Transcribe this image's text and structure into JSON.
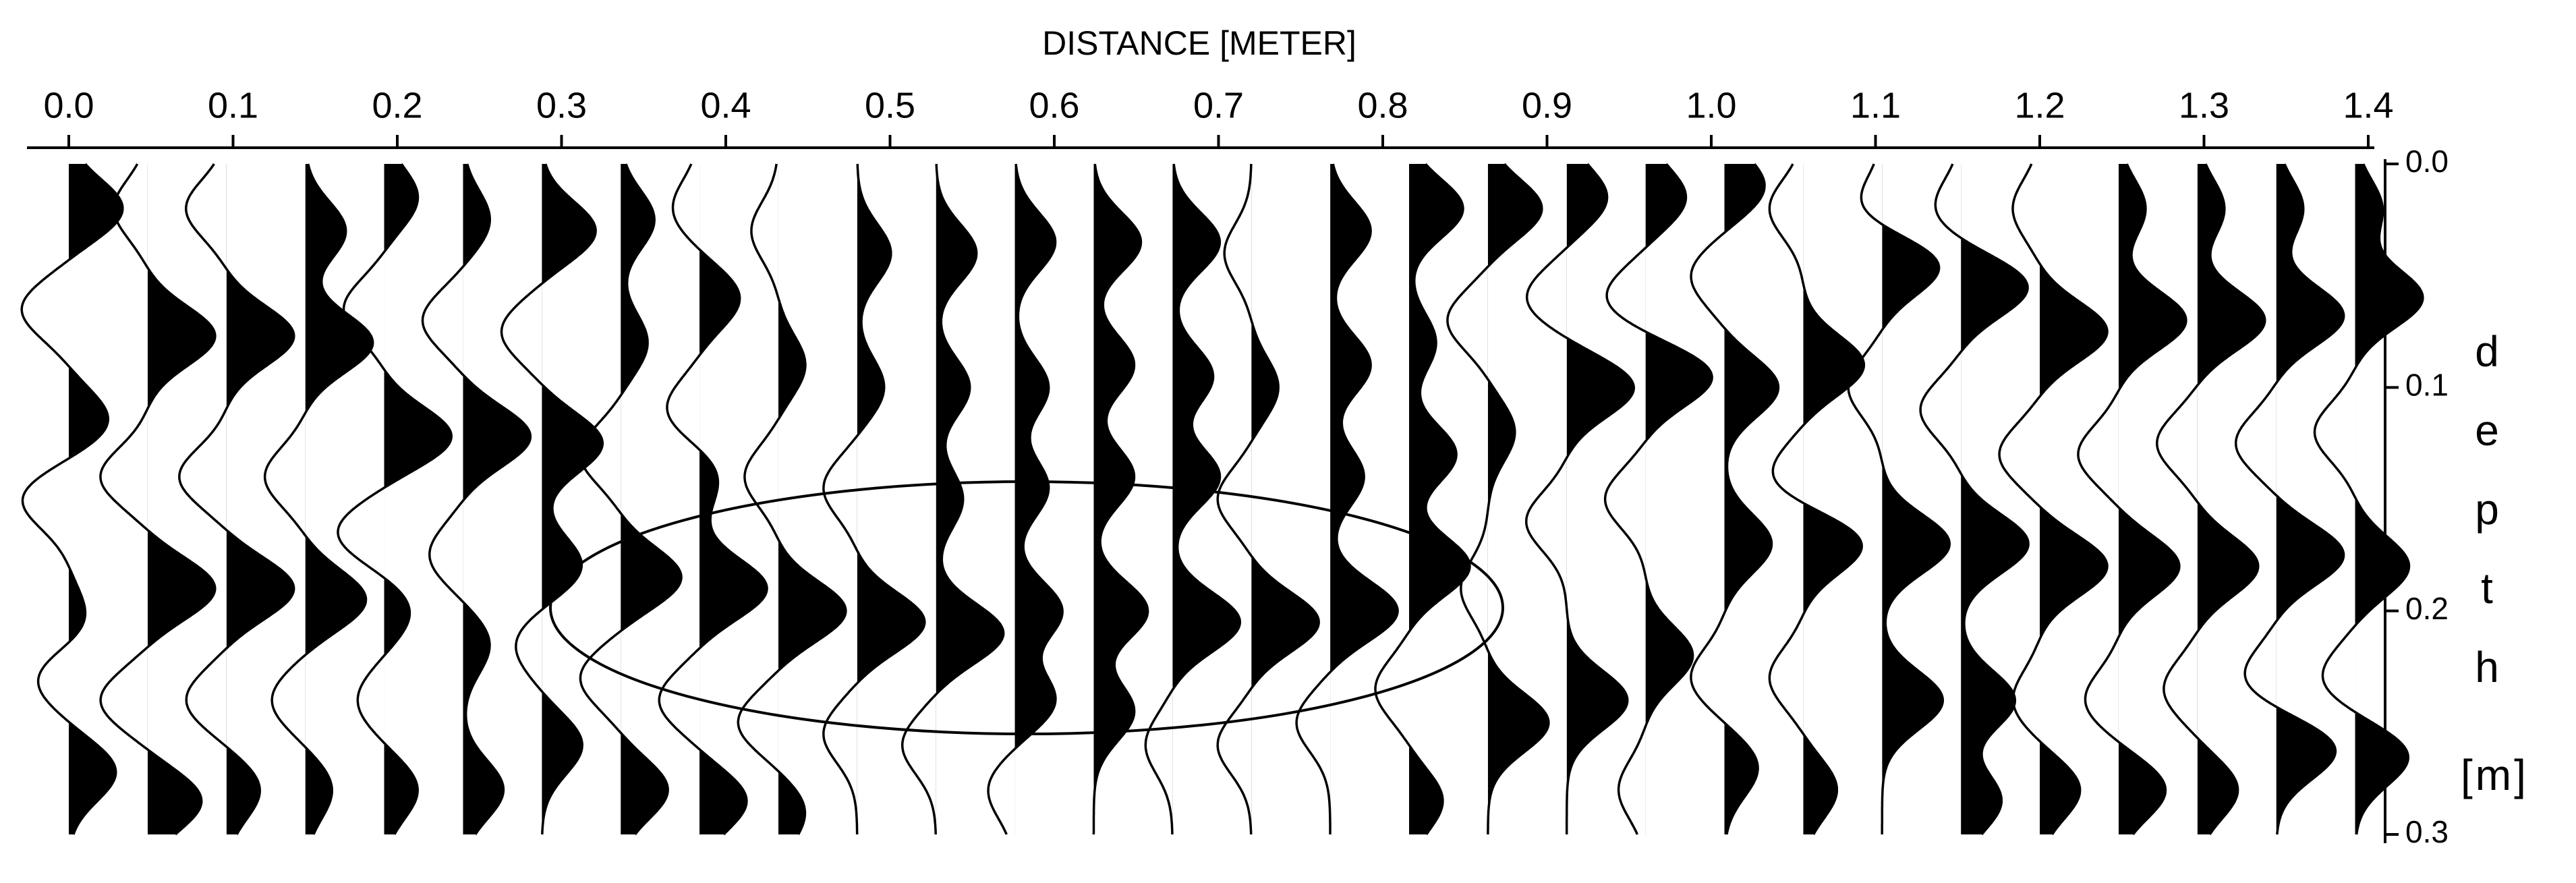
{
  "chart_data": {
    "type": "wiggle",
    "title": "DISTANCE [METER]",
    "y_label": "depth",
    "y_unit": "[m]",
    "xlim": [
      0,
      1.4
    ],
    "ylim": [
      0,
      0.3
    ],
    "xticks": [
      {
        "value": 0,
        "label": "0.0"
      },
      0.1,
      0.2,
      0.3,
      0.4,
      0.5,
      0.6,
      0.7,
      0.8,
      0.9,
      {
        "value": 1,
        "label": "1.0"
      },
      1.1,
      1.2,
      1.3,
      1.4
    ],
    "yticks": [
      {
        "value": 0,
        "label": "0.0"
      },
      0.1,
      0.2,
      0.3
    ],
    "color": "#000000",
    "traces": [
      {
        "x": 0,
        "lobes": [
          [
            0.02,
            0.8
          ],
          [
            0.065,
            -0.7
          ],
          [
            0.115,
            0.6
          ],
          [
            0.15,
            -0.7
          ],
          [
            0.205,
            0.3
          ],
          [
            0.23,
            -0.5
          ],
          [
            0.272,
            0.7
          ]
        ]
      },
      {
        "x": 0.048,
        "lobes": [
          [
            0.02,
            -0.5
          ],
          [
            0.077,
            1
          ],
          [
            0.14,
            -0.7
          ],
          [
            0.19,
            1
          ],
          [
            0.24,
            -0.7
          ],
          [
            0.285,
            0.8
          ]
        ]
      },
      {
        "x": 0.096,
        "lobes": [
          [
            0.02,
            -0.6
          ],
          [
            0.077,
            1
          ],
          [
            0.14,
            -0.7
          ],
          [
            0.19,
            1
          ],
          [
            0.24,
            -0.6
          ],
          [
            0.28,
            0.5
          ]
        ]
      },
      {
        "x": 0.144,
        "lobes": [
          [
            0.03,
            0.6
          ],
          [
            0.08,
            1
          ],
          [
            0.14,
            -0.6
          ],
          [
            0.195,
            0.9
          ],
          [
            0.24,
            -0.5
          ],
          [
            0.28,
            0.4
          ]
        ]
      },
      {
        "x": 0.192,
        "lobes": [
          [
            0.015,
            0.5
          ],
          [
            0.065,
            -0.6
          ],
          [
            0.122,
            1
          ],
          [
            0.165,
            -0.7
          ],
          [
            0.2,
            0.4
          ],
          [
            0.24,
            -0.4
          ],
          [
            0.28,
            0.5
          ]
        ]
      },
      {
        "x": 0.24,
        "lobes": [
          [
            0.025,
            0.4
          ],
          [
            0.07,
            -0.6
          ],
          [
            0.122,
            1
          ],
          [
            0.175,
            -0.5
          ],
          [
            0.215,
            0.4
          ],
          [
            0.28,
            0.6
          ]
        ]
      },
      {
        "x": 0.288,
        "lobes": [
          [
            0.03,
            0.8
          ],
          [
            0.075,
            -0.6
          ],
          [
            0.125,
            0.9
          ],
          [
            0.18,
            0.6
          ],
          [
            0.215,
            -0.4
          ],
          [
            0.26,
            0.6
          ]
        ]
      },
      {
        "x": 0.336,
        "lobes": [
          [
            0.025,
            0.5
          ],
          [
            0.08,
            0.4
          ],
          [
            0.13,
            -0.6
          ],
          [
            0.185,
            0.9
          ],
          [
            0.23,
            -0.6
          ],
          [
            0.28,
            0.7
          ]
        ]
      },
      {
        "x": 0.384,
        "lobes": [
          [
            0.02,
            -0.4
          ],
          [
            0.06,
            0.6
          ],
          [
            0.11,
            -0.5
          ],
          [
            0.14,
            0.3
          ],
          [
            0.19,
            1
          ],
          [
            0.24,
            -0.6
          ],
          [
            0.285,
            0.7
          ]
        ]
      },
      {
        "x": 0.432,
        "lobes": [
          [
            0.03,
            -0.4
          ],
          [
            0.09,
            0.4
          ],
          [
            0.14,
            -0.5
          ],
          [
            0.2,
            1
          ],
          [
            0.25,
            -0.6
          ],
          [
            0.29,
            0.4
          ]
        ]
      },
      {
        "x": 0.48,
        "lobes": [
          [
            0.04,
            0.5
          ],
          [
            0.1,
            0.4
          ],
          [
            0.145,
            -0.5
          ],
          [
            0.205,
            1
          ],
          [
            0.255,
            -0.5
          ]
        ]
      },
      {
        "x": 0.528,
        "lobes": [
          [
            0.04,
            0.6
          ],
          [
            0.1,
            0.5
          ],
          [
            0.15,
            0.4
          ],
          [
            0.21,
            1
          ],
          [
            0.26,
            -0.5
          ]
        ]
      },
      {
        "x": 0.576,
        "lobes": [
          [
            0.035,
            0.6
          ],
          [
            0.1,
            0.5
          ],
          [
            0.145,
            0.5
          ],
          [
            0.2,
            0.7
          ],
          [
            0.24,
            0.6
          ],
          [
            0.28,
            -0.4
          ]
        ]
      },
      {
        "x": 0.624,
        "lobes": [
          [
            0.035,
            0.7
          ],
          [
            0.09,
            0.6
          ],
          [
            0.14,
            0.6
          ],
          [
            0.2,
            0.8
          ],
          [
            0.245,
            0.6
          ]
        ]
      },
      {
        "x": 0.672,
        "lobes": [
          [
            0.035,
            0.7
          ],
          [
            0.095,
            0.6
          ],
          [
            0.14,
            0.7
          ],
          [
            0.205,
            1
          ],
          [
            0.26,
            -0.4
          ]
        ]
      },
      {
        "x": 0.72,
        "lobes": [
          [
            0.04,
            -0.4
          ],
          [
            0.1,
            0.4
          ],
          [
            0.15,
            -0.5
          ],
          [
            0.205,
            1
          ],
          [
            0.26,
            -0.5
          ]
        ]
      },
      {
        "x": 0.768,
        "lobes": [
          [
            0.03,
            0.6
          ],
          [
            0.09,
            0.6
          ],
          [
            0.14,
            0.5
          ],
          [
            0.2,
            1
          ],
          [
            0.25,
            -0.5
          ]
        ]
      },
      {
        "x": 0.816,
        "lobes": [
          [
            0.02,
            0.8
          ],
          [
            0.08,
            0.4
          ],
          [
            0.13,
            0.7
          ],
          [
            0.18,
            0.9
          ],
          [
            0.235,
            -0.5
          ],
          [
            0.285,
            0.5
          ]
        ]
      },
      {
        "x": 0.864,
        "lobes": [
          [
            0.02,
            0.8
          ],
          [
            0.07,
            -0.6
          ],
          [
            0.12,
            0.4
          ],
          [
            0.19,
            -0.4
          ],
          [
            0.25,
            0.9
          ]
        ]
      },
      {
        "x": 0.912,
        "lobes": [
          [
            0.015,
            0.6
          ],
          [
            0.06,
            -0.6
          ],
          [
            0.1,
            1
          ],
          [
            0.16,
            -0.6
          ],
          [
            0.24,
            0.9
          ]
        ]
      },
      {
        "x": 0.96,
        "lobes": [
          [
            0.015,
            0.6
          ],
          [
            0.06,
            -0.6
          ],
          [
            0.095,
            1
          ],
          [
            0.15,
            -0.6
          ],
          [
            0.22,
            0.7
          ],
          [
            0.28,
            -0.4
          ]
        ]
      },
      {
        "x": 1.008,
        "lobes": [
          [
            0.01,
            0.6
          ],
          [
            0.05,
            -0.5
          ],
          [
            0.1,
            0.8
          ],
          [
            0.17,
            0.7
          ],
          [
            0.23,
            -0.5
          ],
          [
            0.27,
            0.5
          ]
        ]
      },
      {
        "x": 1.056,
        "lobes": [
          [
            0.02,
            -0.5
          ],
          [
            0.09,
            0.9
          ],
          [
            0.14,
            -0.5
          ],
          [
            0.17,
            0.9
          ],
          [
            0.23,
            -0.5
          ],
          [
            0.28,
            0.5
          ]
        ]
      },
      {
        "x": 1.104,
        "lobes": [
          [
            0.02,
            -0.4
          ],
          [
            0.045,
            0.9
          ],
          [
            0.1,
            -0.5
          ],
          [
            0.17,
            1
          ],
          [
            0.24,
            0.9
          ]
        ]
      },
      {
        "x": 1.152,
        "lobes": [
          [
            0.02,
            -0.4
          ],
          [
            0.055,
            1
          ],
          [
            0.11,
            -0.6
          ],
          [
            0.17,
            1
          ],
          [
            0.24,
            0.8
          ],
          [
            0.285,
            0.6
          ]
        ]
      },
      {
        "x": 1.2,
        "lobes": [
          [
            0.02,
            -0.4
          ],
          [
            0.075,
            1
          ],
          [
            0.13,
            -0.6
          ],
          [
            0.18,
            1
          ],
          [
            0.24,
            -0.4
          ],
          [
            0.28,
            0.6
          ]
        ]
      },
      {
        "x": 1.248,
        "lobes": [
          [
            0.02,
            0.4
          ],
          [
            0.07,
            1
          ],
          [
            0.13,
            -0.6
          ],
          [
            0.18,
            0.9
          ],
          [
            0.24,
            -0.5
          ],
          [
            0.28,
            0.7
          ]
        ]
      },
      {
        "x": 1.296,
        "lobes": [
          [
            0.02,
            0.4
          ],
          [
            0.07,
            1
          ],
          [
            0.125,
            -0.6
          ],
          [
            0.18,
            0.9
          ],
          [
            0.235,
            -0.5
          ],
          [
            0.28,
            0.6
          ]
        ]
      },
      {
        "x": 1.344,
        "lobes": [
          [
            0.02,
            0.4
          ],
          [
            0.068,
            1
          ],
          [
            0.125,
            -0.6
          ],
          [
            0.175,
            1
          ],
          [
            0.23,
            -0.5
          ],
          [
            0.262,
            0.9
          ]
        ]
      },
      {
        "x": 1.392,
        "lobes": [
          [
            0.02,
            0.4
          ],
          [
            0.06,
            1
          ],
          [
            0.12,
            -0.6
          ],
          [
            0.18,
            0.8
          ],
          [
            0.23,
            -0.5
          ],
          [
            0.265,
            0.8
          ]
        ]
      }
    ]
  }
}
